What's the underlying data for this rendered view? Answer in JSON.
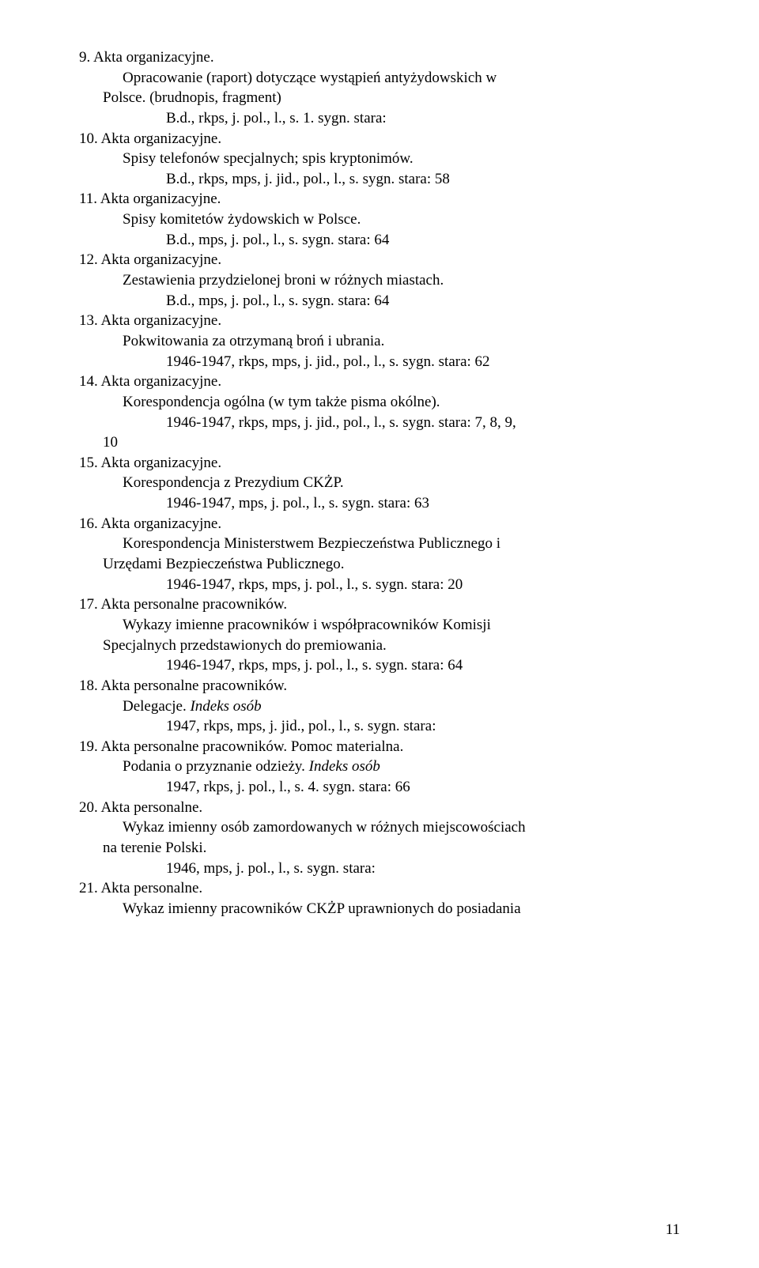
{
  "entries": [
    {
      "num": "9.",
      "title": "Akta organizacyjne.",
      "lines": [
        "Opracowanie (raport) dotyczące wystąpień antyżydowskich w"
      ],
      "cont": "Polsce. (brudnopis, fragment)",
      "sig": "B.d., rkps, j. pol., l., s. 1.   sygn. stara:"
    },
    {
      "num": "10.",
      "title": "Akta organizacyjne.",
      "lines": [
        "Spisy telefonów specjalnych; spis kryptonimów."
      ],
      "sig": "B.d., rkps, mps, j. jid., pol., l., s.   sygn. stara: 58"
    },
    {
      "num": "11.",
      "title": "Akta organizacyjne.",
      "lines": [
        "Spisy komitetów żydowskich w Polsce."
      ],
      "sig": "B.d., mps, j. pol., l., s.   sygn. stara: 64"
    },
    {
      "num": "12.",
      "title": "Akta organizacyjne.",
      "lines": [
        "Zestawienia przydzielonej broni w różnych miastach."
      ],
      "sig": "B.d., mps, j. pol., l., s.   sygn. stara: 64"
    },
    {
      "num": "13.",
      "title": "Akta organizacyjne.",
      "lines": [
        "Pokwitowania za otrzymaną broń i ubrania."
      ],
      "sig": "1946-1947, rkps, mps, j. jid., pol., l., s.   sygn. stara: 62"
    },
    {
      "num": "14.",
      "title": "Akta organizacyjne.",
      "lines": [
        "Korespondencja ogólna (w tym także pisma okólne)."
      ],
      "sig": "1946-1947, rkps, mps, j. jid., pol., l., s.   sygn. stara: 7, 8, 9,",
      "cont2": "10"
    },
    {
      "num": "15.",
      "title": "Akta organizacyjne.",
      "lines": [
        "Korespondencja z Prezydium CKŻP."
      ],
      "sig": "1946-1947, mps, j. pol., l., s.   sygn. stara: 63"
    },
    {
      "num": "16.",
      "title": "Akta organizacyjne.",
      "lines": [
        "Korespondencja Ministerstwem Bezpieczeństwa Publicznego i"
      ],
      "cont": "Urzędami Bezpieczeństwa Publicznego.",
      "sig": "1946-1947, rkps, mps, j. pol., l., s.   sygn. stara: 20"
    },
    {
      "num": "17.",
      "title": "Akta personalne pracowników.",
      "lines": [
        "Wykazy imienne pracowników i współpracowników Komisji"
      ],
      "cont": "Specjalnych przedstawionych do premiowania.",
      "sig": "1946-1947, rkps, mps, j. pol., l., s.   sygn. stara: 64"
    },
    {
      "num": "18.",
      "title": "Akta personalne pracowników.",
      "lines_italic": [
        {
          "pre": "Delegacje. ",
          "it": "Indeks osób"
        }
      ],
      "sig": "1947, rkps, mps, j. jid., pol., l., s.   sygn. stara:"
    },
    {
      "num": "19.",
      "title": "Akta personalne pracowników. Pomoc materialna.",
      "lines_italic": [
        {
          "pre": "Podania o przyznanie odzieży. ",
          "it": "Indeks osób"
        }
      ],
      "sig": "1947, rkps, j. pol., l., s. 4.   sygn. stara: 66"
    },
    {
      "num": "20.",
      "title": "Akta personalne.",
      "lines": [
        "Wykaz imienny osób zamordowanych w różnych miejscowościach"
      ],
      "cont": "na terenie Polski.",
      "sig": "1946, mps, j. pol., l., s.   sygn. stara:"
    },
    {
      "num": "21.",
      "title": "Akta personalne.",
      "lines": [
        "Wykaz imienny pracowników CKŻP uprawnionych do posiadania"
      ]
    }
  ],
  "page_number": "11",
  "colors": {
    "text": "#000000",
    "background": "#ffffff"
  }
}
